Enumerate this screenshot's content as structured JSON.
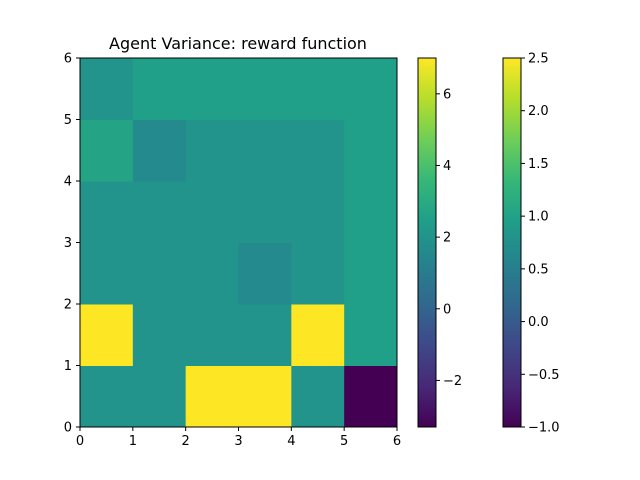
{
  "chart_data": {
    "type": "heatmap",
    "title": "Agent Variance: reward function",
    "xlabel": "",
    "ylabel": "",
    "xlim": [
      0,
      6
    ],
    "ylim": [
      0,
      6
    ],
    "x_ticks": [
      "0",
      "1",
      "2",
      "3",
      "4",
      "5",
      "6"
    ],
    "y_ticks": [
      "0",
      "1",
      "2",
      "3",
      "4",
      "5",
      "6"
    ],
    "grid": false,
    "colormap": "viridis",
    "rows_bottom_to_top": [
      [
        2.0,
        2.0,
        7.0,
        7.0,
        2.0,
        -3.3
      ],
      [
        7.0,
        2.0,
        2.0,
        2.0,
        7.0,
        2.5
      ],
      [
        2.0,
        2.0,
        2.0,
        1.6,
        2.0,
        2.5
      ],
      [
        2.0,
        2.0,
        2.0,
        2.0,
        2.0,
        2.5
      ],
      [
        2.7,
        1.6,
        2.0,
        2.0,
        2.0,
        2.5
      ],
      [
        2.0,
        2.5,
        2.5,
        2.5,
        2.5,
        2.5
      ]
    ],
    "colorbars": [
      {
        "vmin": -3.3,
        "vmax": 7.0,
        "ticks": [
          -2,
          0,
          2,
          4,
          6
        ],
        "tick_labels": [
          "−2",
          "0",
          "2",
          "4",
          "6"
        ]
      },
      {
        "vmin": -1.0,
        "vmax": 2.5,
        "ticks": [
          -1.0,
          -0.5,
          0.0,
          0.5,
          1.0,
          1.5,
          2.0,
          2.5
        ],
        "tick_labels": [
          "−1.0",
          "−0.5",
          "0.0",
          "0.5",
          "1.0",
          "1.5",
          "2.0",
          "2.5"
        ]
      }
    ]
  }
}
